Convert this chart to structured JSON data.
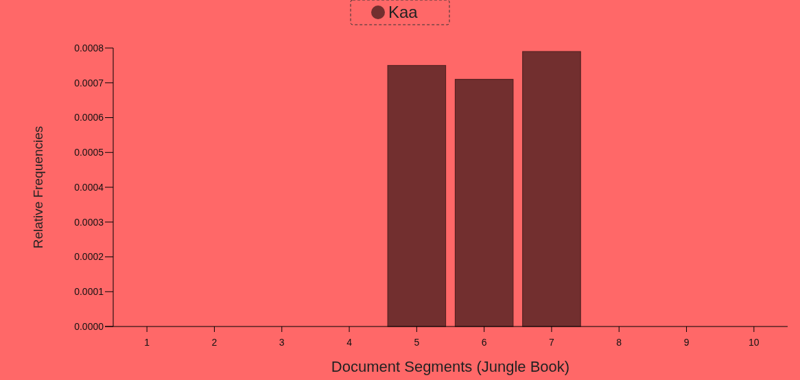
{
  "chart_data": {
    "type": "bar",
    "xlabel": "Document Segments (Jungle Book)",
    "ylabel": "Relative Frequencies",
    "categories": [
      "1",
      "2",
      "3",
      "4",
      "5",
      "6",
      "7",
      "8",
      "9",
      "10"
    ],
    "series": [
      {
        "name": "Kaa",
        "color": "#722f2f",
        "values": [
          0,
          0,
          0,
          0,
          0.00075,
          0.00071,
          0.00079,
          0,
          0,
          0
        ]
      }
    ],
    "ylim": [
      0,
      0.0008
    ],
    "yticks": [
      {
        "value": 0,
        "label": "0.0000"
      },
      {
        "value": 0.0001,
        "label": "0.0001"
      },
      {
        "value": 0.0002,
        "label": "0.0002"
      },
      {
        "value": 0.0003,
        "label": "0.0003"
      },
      {
        "value": 0.0004,
        "label": "0.0004"
      },
      {
        "value": 0.0005,
        "label": "0.0005"
      },
      {
        "value": 0.0006,
        "label": "0.0006"
      },
      {
        "value": 0.0007,
        "label": "0.0007"
      },
      {
        "value": 0.0008,
        "label": "0.0008"
      }
    ],
    "legend": "top",
    "grid": false
  }
}
